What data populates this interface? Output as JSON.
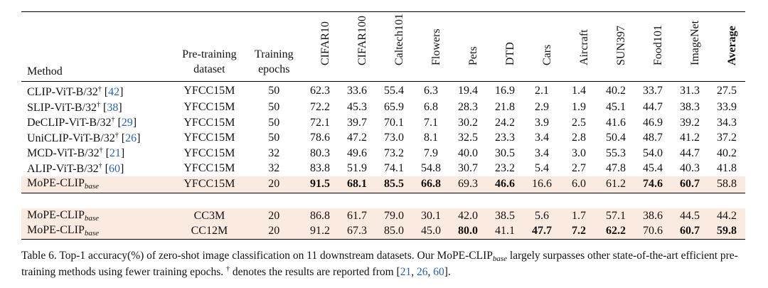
{
  "table": {
    "headers": {
      "method": "Method",
      "dataset_line1": "Pre-training",
      "dataset_line2": "dataset",
      "epochs_line1": "Training",
      "epochs_line2": "epochs",
      "datasets": [
        "CIFAR10",
        "CIFAR100",
        "Caltech101",
        "Flowers",
        "Pets",
        "DTD",
        "Cars",
        "Aircraft",
        "SUN397",
        "Food101",
        "ImageNet"
      ],
      "average": "Average"
    },
    "rows": [
      {
        "method": "CLIP-ViT-B/32",
        "cite": "42",
        "dataset": "YFCC15M",
        "epochs": "50",
        "scores": [
          "62.3",
          "33.6",
          "55.4",
          "6.3",
          "19.4",
          "16.9",
          "2.1",
          "1.4",
          "40.2",
          "33.7",
          "31.3"
        ],
        "average": "27.5"
      },
      {
        "method": "SLIP-ViT-B/32",
        "cite": "38",
        "dataset": "YFCC15M",
        "epochs": "50",
        "scores": [
          "72.2",
          "45.3",
          "65.9",
          "6.8",
          "28.3",
          "21.8",
          "2.9",
          "1.9",
          "45.1",
          "44.7",
          "38.3"
        ],
        "average": "33.9"
      },
      {
        "method": "DeCLIP-ViT-B/32",
        "cite": "29",
        "dataset": "YFCC15M",
        "epochs": "50",
        "scores": [
          "72.1",
          "39.7",
          "70.1",
          "7.1",
          "30.2",
          "24.2",
          "3.9",
          "2.5",
          "41.6",
          "46.9",
          "39.2"
        ],
        "average": "34.3"
      },
      {
        "method": "UniCLIP-ViT-B/32",
        "cite": "26",
        "dataset": "YFCC15M",
        "epochs": "50",
        "scores": [
          "78.6",
          "47.2",
          "73.0",
          "8.1",
          "32.5",
          "23.3",
          "3.4",
          "2.8",
          "50.4",
          "48.7",
          "41.2"
        ],
        "average": "37.2"
      },
      {
        "method": "MCD-ViT-B/32",
        "cite": "21",
        "dataset": "YFCC15M",
        "epochs": "32",
        "scores": [
          "80.3",
          "49.6",
          "73.2",
          "7.9",
          "40.0",
          "30.5",
          "3.4",
          "3.0",
          "55.3",
          "54.0",
          "44.7"
        ],
        "average": "40.2"
      },
      {
        "method": "ALIP-ViT-B/32",
        "cite": "60",
        "dataset": "YFCC15M",
        "epochs": "32",
        "scores": [
          "83.8",
          "51.9",
          "74.1",
          "54.8",
          "30.7",
          "23.2",
          "5.4",
          "2.7",
          "47.8",
          "45.4",
          "40.3"
        ],
        "average": "41.8"
      },
      {
        "method": "MoPE-CLIP",
        "sub": "base",
        "dataset": "YFCC15M",
        "epochs": "20",
        "scores": [
          "91.5",
          "68.1",
          "85.5",
          "66.8",
          "69.3",
          "46.6",
          "16.6",
          "6.0",
          "61.2",
          "74.6",
          "60.7"
        ],
        "average": "58.8"
      },
      {
        "method": "MoPE-CLIP",
        "sub": "base",
        "dataset": "CC3M",
        "epochs": "20",
        "scores": [
          "86.8",
          "61.7",
          "79.0",
          "30.1",
          "42.0",
          "38.5",
          "5.6",
          "1.7",
          "57.1",
          "38.6",
          "44.5"
        ],
        "average": "44.2"
      },
      {
        "method": "MoPE-CLIP",
        "sub": "base",
        "dataset": "CC12M",
        "epochs": "20",
        "scores": [
          "91.2",
          "67.3",
          "85.0",
          "45.0",
          "80.0",
          "41.1",
          "47.7",
          "7.2",
          "62.2",
          "70.6",
          "60.7"
        ],
        "average": "59.8"
      }
    ],
    "dagger": "†",
    "open_bracket": "[",
    "close_bracket": "]"
  },
  "caption": {
    "label": "Table 6.",
    "text1": "Top-1 accuracy(%) of zero-shot image classification on 11 downstream datasets. Our MoPE-CLIP",
    "sub": "base",
    "text2": "largely surpasses other state-of-the-art efficient pre-training methods using fewer training epochs.",
    "dagger": "†",
    "text3": "denotes the results are reported from [",
    "cites": [
      "21",
      "26",
      "60"
    ],
    "sep": ", ",
    "end": "]."
  },
  "colors": {
    "highlight_row": "#fbeadf",
    "citation": "#2a62a8"
  }
}
